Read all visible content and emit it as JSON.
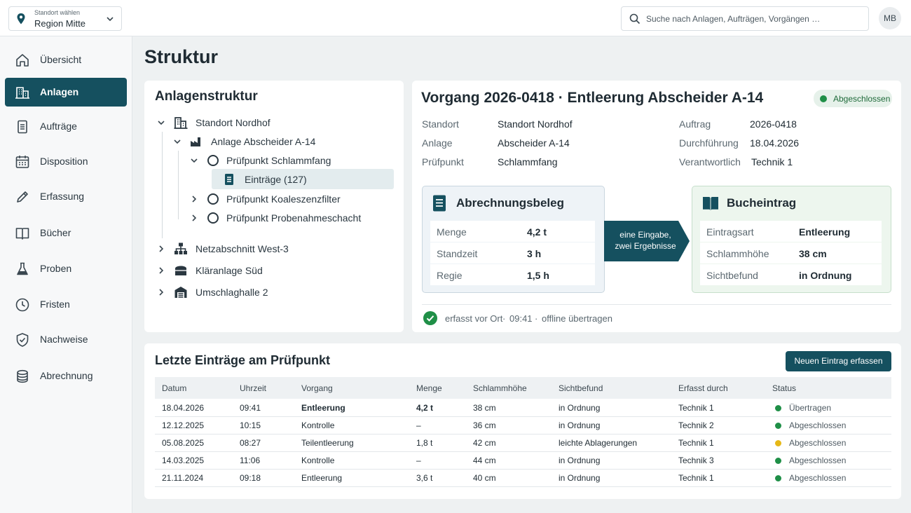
{
  "topbar": {
    "location_caption": "Standort wählen",
    "location_value": "Region Mitte",
    "search_placeholder": "Suche nach Anlagen, Aufträgen, Vorgängen …",
    "avatar_initials": "MB"
  },
  "sidebar": {
    "items": [
      {
        "label": "Übersicht",
        "icon": "home-icon",
        "active": false
      },
      {
        "label": "Anlagen",
        "icon": "building-icon",
        "active": true
      },
      {
        "label": "Aufträge",
        "icon": "document-icon",
        "active": false
      },
      {
        "label": "Disposition",
        "icon": "calendar-icon",
        "active": false
      },
      {
        "label": "Erfassung",
        "icon": "pencil-icon",
        "active": false
      },
      {
        "label": "Bücher",
        "icon": "book-icon",
        "active": false
      },
      {
        "label": "Proben",
        "icon": "flask-icon",
        "active": false
      },
      {
        "label": "Fristen",
        "icon": "clock-icon",
        "active": false
      },
      {
        "label": "Nachweise",
        "icon": "shield-check-icon",
        "active": false
      },
      {
        "label": "Abrechnung",
        "icon": "coins-icon",
        "active": false
      }
    ]
  },
  "page": {
    "title": "Struktur"
  },
  "tree": {
    "title": "Anlagenstruktur",
    "nodes": [
      {
        "label": "Standort Nordhof",
        "icon": "building-icon",
        "expanded": true
      },
      {
        "label": "Anlage Abscheider A-14",
        "icon": "factory-icon",
        "expanded": true
      },
      {
        "label": "Prüfpunkt Schlammfang",
        "icon": "circle-icon",
        "expanded": true
      },
      {
        "label": "Einträge (127)",
        "icon": "document-icon",
        "selected": true
      },
      {
        "label": "Prüfpunkt Koaleszenzfilter",
        "icon": "circle-icon",
        "expanded": false
      },
      {
        "label": "Prüfpunkt Probenahmeschacht",
        "icon": "circle-icon",
        "expanded": false
      },
      {
        "label": "Netzabschnitt West-3",
        "icon": "network-icon",
        "expanded": false
      },
      {
        "label": "Kläranlage Süd",
        "icon": "tank-icon",
        "expanded": false
      },
      {
        "label": "Umschlaghalle 2",
        "icon": "warehouse-icon",
        "expanded": false
      }
    ]
  },
  "detail": {
    "title": "Vorgang 2026-0418 · Entleerung Abscheider A-14",
    "status": "Abgeschlossen",
    "status_color": "#1f8f47",
    "meta_left": [
      {
        "key": "Standort",
        "value": "Standort Nordhof"
      },
      {
        "key": "Anlage",
        "value": "Abscheider A-14"
      },
      {
        "key": "Prüfpunkt",
        "value": "Schlammfang"
      }
    ],
    "meta_right": [
      {
        "key": "Auftrag",
        "value": "2026-0418"
      },
      {
        "key": "Durchführung",
        "value": "18.04.2026"
      },
      {
        "key": "Verantwortlich",
        "value": "Technik 1"
      }
    ],
    "billing": {
      "title": "Abrechnungsbeleg",
      "rows": [
        {
          "key": "Menge",
          "value": "4,2 t"
        },
        {
          "key": "Standzeit",
          "value": "3 h"
        },
        {
          "key": "Regie",
          "value": "1,5 h"
        }
      ]
    },
    "arrow_line1": "eine Eingabe,",
    "arrow_line2": "zwei Ergebnisse",
    "book": {
      "title": "Bucheintrag",
      "rows": [
        {
          "key": "Eintragsart",
          "value": "Entleerung"
        },
        {
          "key": "Schlammhöhe",
          "value": "38 cm"
        },
        {
          "key": "Sichtbefund",
          "value": "in Ordnung"
        }
      ]
    },
    "footer": {
      "captured": "erfasst vor Ort",
      "sep1": "·",
      "time": "09:41",
      "sep2": "·",
      "sync": "offline übertragen"
    }
  },
  "entries": {
    "title": "Letzte Einträge am Prüfpunkt",
    "new_button": "Neuen Eintrag erfassen",
    "columns": [
      "Datum",
      "Uhrzeit",
      "Vorgang",
      "Menge",
      "Schlammhöhe",
      "Sichtbefund",
      "Erfasst durch",
      "Status"
    ],
    "rows": [
      {
        "datum": "18.04.2026",
        "uhrzeit": "09:41",
        "vorgang": "Entleerung",
        "menge": "4,2 t",
        "hoehe": "38 cm",
        "befund": "in Ordnung",
        "durch": "Technik 1",
        "status": "Übertragen",
        "status_color": "#1f8f47",
        "highlight": true
      },
      {
        "datum": "12.12.2025",
        "uhrzeit": "10:15",
        "vorgang": "Kontrolle",
        "menge": "–",
        "hoehe": "36 cm",
        "befund": "in Ordnung",
        "durch": "Technik 2",
        "status": "Abgeschlossen",
        "status_color": "#1f8f47",
        "highlight": false
      },
      {
        "datum": "05.08.2025",
        "uhrzeit": "08:27",
        "vorgang": "Teilentleerung",
        "menge": "1,8 t",
        "hoehe": "42 cm",
        "befund": "leichte Ablagerungen",
        "durch": "Technik 1",
        "status": "Abgeschlossen",
        "status_color": "#e6b817",
        "highlight": false
      },
      {
        "datum": "14.03.2025",
        "uhrzeit": "11:06",
        "vorgang": "Kontrolle",
        "menge": "–",
        "hoehe": "44 cm",
        "befund": "in Ordnung",
        "durch": "Technik 3",
        "status": "Abgeschlossen",
        "status_color": "#1f8f47",
        "highlight": false
      },
      {
        "datum": "21.11.2024",
        "uhrzeit": "09:18",
        "vorgang": "Entleerung",
        "menge": "3,6 t",
        "hoehe": "40 cm",
        "befund": "in Ordnung",
        "durch": "Technik 1",
        "status": "Abgeschlossen",
        "status_color": "#1f8f47",
        "highlight": false
      }
    ]
  },
  "colors": {
    "accent": "#15505f",
    "ok": "#1f8f47",
    "warn": "#e6b817"
  }
}
